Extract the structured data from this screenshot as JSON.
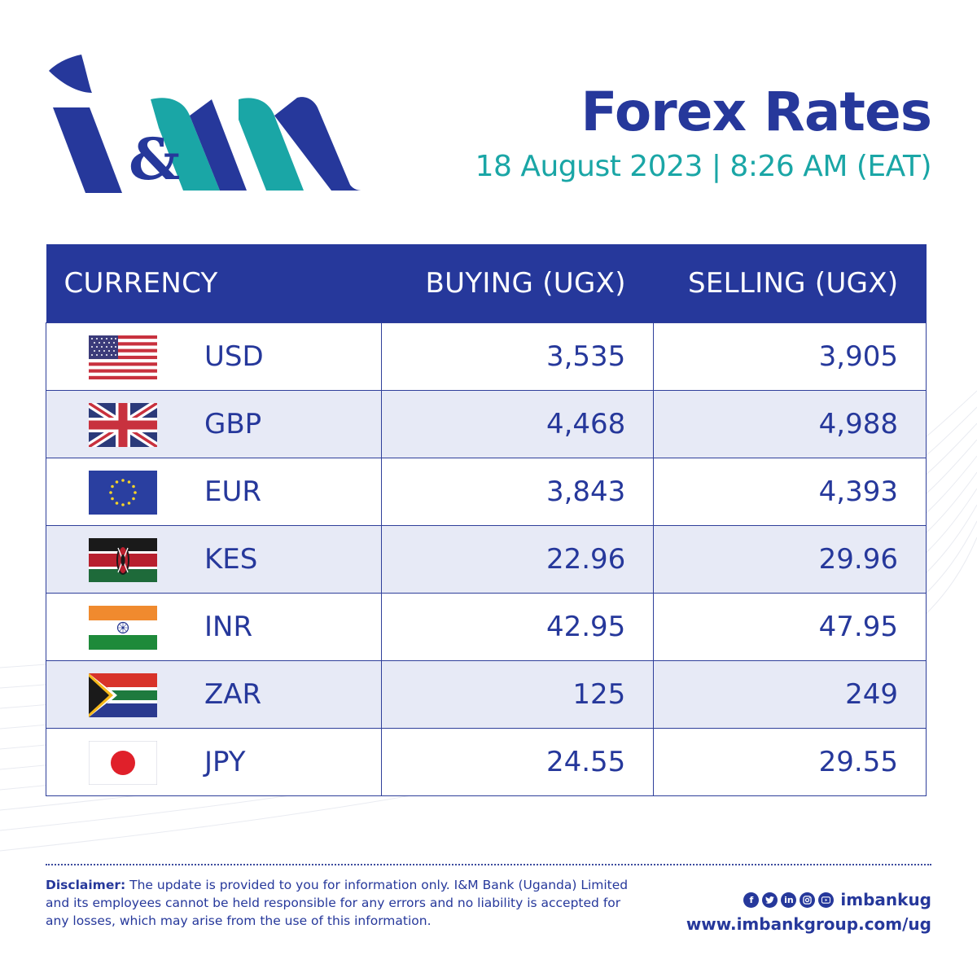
{
  "brand": {
    "logo_text": "I&M",
    "colors": {
      "navy": "#26389b",
      "teal": "#1aa6a6",
      "row_alt": "#e7eaf6"
    }
  },
  "header": {
    "title": "Forex Rates",
    "subtitle": "18 August 2023 | 8:26 AM (EAT)"
  },
  "table": {
    "columns": [
      "CURRENCY",
      "BUYING (UGX)",
      "SELLING (UGX)"
    ],
    "rows": [
      {
        "flag": "us-flag-icon",
        "code": "USD",
        "buying": "3,535",
        "selling": "3,905"
      },
      {
        "flag": "uk-flag-icon",
        "code": "GBP",
        "buying": "4,468",
        "selling": "4,988"
      },
      {
        "flag": "eu-flag-icon",
        "code": "EUR",
        "buying": "3,843",
        "selling": "4,393"
      },
      {
        "flag": "kenya-flag-icon",
        "code": "KES",
        "buying": "22.96",
        "selling": "29.96"
      },
      {
        "flag": "india-flag-icon",
        "code": "INR",
        "buying": "42.95",
        "selling": "47.95"
      },
      {
        "flag": "south-africa-flag-icon",
        "code": "ZAR",
        "buying": "125",
        "selling": "249"
      },
      {
        "flag": "japan-flag-icon",
        "code": "JPY",
        "buying": "24.55",
        "selling": "29.55"
      }
    ]
  },
  "footer": {
    "disclaimer_label": "Disclaimer:",
    "disclaimer_text": " The update is provided to you for information only. I&M Bank (Uganda) Limited and its employees cannot be held responsible for any errors and no liability is accepted for any losses, which may arise from the use of this information.",
    "social_icons": [
      "facebook-icon",
      "twitter-icon",
      "linkedin-icon",
      "instagram-icon",
      "youtube-icon"
    ],
    "handle": "imbankug",
    "website": "www.imbankgroup.com/ug"
  }
}
